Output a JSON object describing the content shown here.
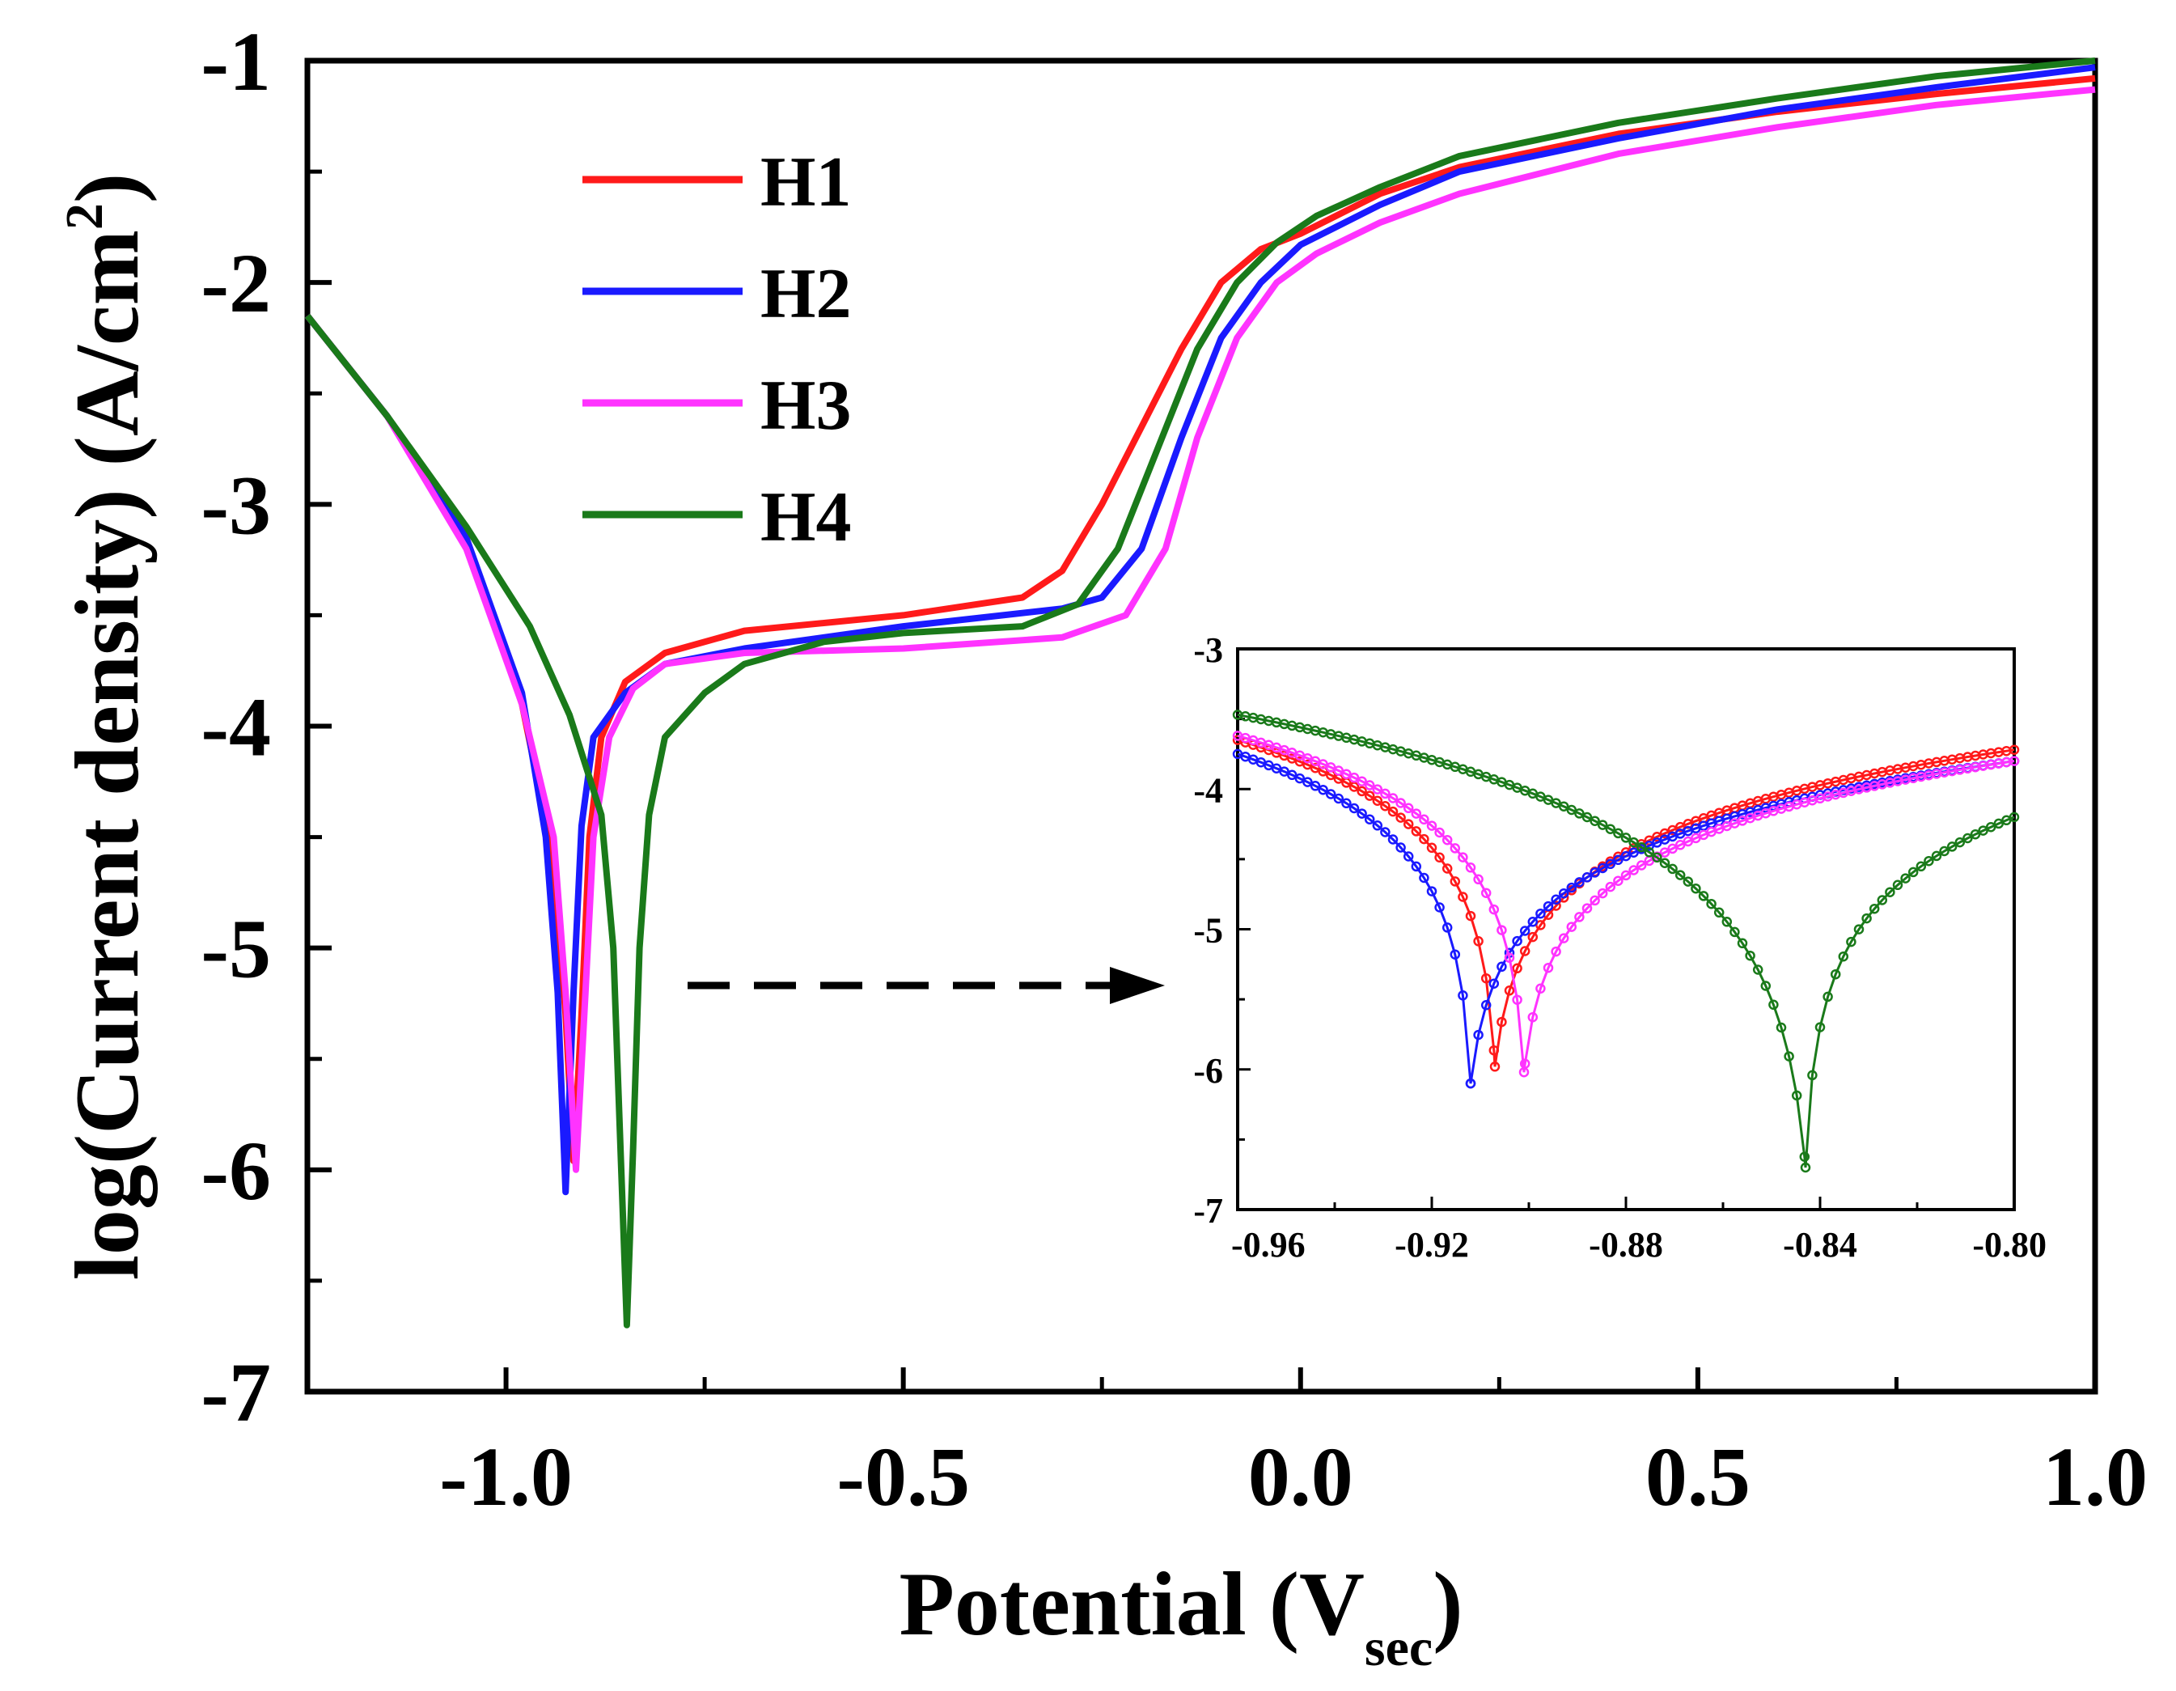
{
  "chart_data": [
    {
      "type": "line",
      "role": "main",
      "xlabel": "Potential (V",
      "xlabel_sub": "sec",
      "xlabel_close": ")",
      "ylabel": "log(Current density) (A/cm",
      "ylabel_sup": "2",
      "ylabel_close": ")",
      "xlim": [
        -1.25,
        1.0
      ],
      "ylim": [
        -7,
        -1
      ],
      "x_ticks": [
        -1.0,
        -0.5,
        0.0,
        0.5,
        1.0
      ],
      "x_tick_labels": [
        "-1.0",
        "-0.5",
        "0.0",
        "0.5",
        "1.0"
      ],
      "y_ticks": [
        -7,
        -6,
        -5,
        -4,
        -3,
        -2,
        -1
      ],
      "y_tick_labels": [
        "-7",
        "-6",
        "-5",
        "-4",
        "-3",
        "-2",
        "-1"
      ],
      "grid": false,
      "legend_position": "top-left",
      "series": [
        {
          "name": "H1",
          "color": "#ff1a1a",
          "points": [
            [
              -1.25,
              -2.15
            ],
            [
              -1.15,
              -2.6
            ],
            [
              -1.05,
              -3.15
            ],
            [
              -0.98,
              -3.9
            ],
            [
              -0.94,
              -4.6
            ],
            [
              -0.925,
              -5.3
            ],
            [
              -0.915,
              -5.96
            ],
            [
              -0.905,
              -5.3
            ],
            [
              -0.895,
              -4.5
            ],
            [
              -0.88,
              -4.05
            ],
            [
              -0.85,
              -3.8
            ],
            [
              -0.8,
              -3.67
            ],
            [
              -0.7,
              -3.57
            ],
            [
              -0.5,
              -3.5
            ],
            [
              -0.35,
              -3.42
            ],
            [
              -0.3,
              -3.3
            ],
            [
              -0.25,
              -3.0
            ],
            [
              -0.2,
              -2.65
            ],
            [
              -0.15,
              -2.3
            ],
            [
              -0.1,
              -2.0
            ],
            [
              -0.05,
              -1.85
            ],
            [
              0.0,
              -1.78
            ],
            [
              0.1,
              -1.6
            ],
            [
              0.2,
              -1.48
            ],
            [
              0.4,
              -1.33
            ],
            [
              0.6,
              -1.23
            ],
            [
              0.8,
              -1.15
            ],
            [
              1.0,
              -1.08
            ]
          ]
        },
        {
          "name": "H2",
          "color": "#1a1aff",
          "points": [
            [
              -1.25,
              -2.15
            ],
            [
              -1.15,
              -2.6
            ],
            [
              -1.05,
              -3.15
            ],
            [
              -0.98,
              -3.85
            ],
            [
              -0.95,
              -4.5
            ],
            [
              -0.935,
              -5.2
            ],
            [
              -0.925,
              -6.1
            ],
            [
              -0.915,
              -5.2
            ],
            [
              -0.905,
              -4.45
            ],
            [
              -0.89,
              -4.05
            ],
            [
              -0.85,
              -3.85
            ],
            [
              -0.8,
              -3.72
            ],
            [
              -0.7,
              -3.65
            ],
            [
              -0.5,
              -3.55
            ],
            [
              -0.3,
              -3.47
            ],
            [
              -0.25,
              -3.42
            ],
            [
              -0.2,
              -3.2
            ],
            [
              -0.15,
              -2.7
            ],
            [
              -0.1,
              -2.25
            ],
            [
              -0.05,
              -2.0
            ],
            [
              0.0,
              -1.83
            ],
            [
              0.1,
              -1.65
            ],
            [
              0.2,
              -1.5
            ],
            [
              0.4,
              -1.35
            ],
            [
              0.6,
              -1.22
            ],
            [
              0.8,
              -1.12
            ],
            [
              1.0,
              -1.03
            ]
          ]
        },
        {
          "name": "H3",
          "color": "#ff33ff",
          "points": [
            [
              -1.25,
              -2.15
            ],
            [
              -1.15,
              -2.6
            ],
            [
              -1.05,
              -3.2
            ],
            [
              -0.98,
              -3.9
            ],
            [
              -0.94,
              -4.5
            ],
            [
              -0.925,
              -5.2
            ],
            [
              -0.912,
              -6.0
            ],
            [
              -0.9,
              -5.2
            ],
            [
              -0.89,
              -4.5
            ],
            [
              -0.87,
              -4.05
            ],
            [
              -0.84,
              -3.83
            ],
            [
              -0.8,
              -3.72
            ],
            [
              -0.7,
              -3.67
            ],
            [
              -0.5,
              -3.65
            ],
            [
              -0.3,
              -3.6
            ],
            [
              -0.22,
              -3.5
            ],
            [
              -0.17,
              -3.2
            ],
            [
              -0.13,
              -2.7
            ],
            [
              -0.08,
              -2.25
            ],
            [
              -0.03,
              -2.0
            ],
            [
              0.02,
              -1.87
            ],
            [
              0.1,
              -1.73
            ],
            [
              0.2,
              -1.6
            ],
            [
              0.4,
              -1.42
            ],
            [
              0.6,
              -1.3
            ],
            [
              0.8,
              -1.2
            ],
            [
              1.0,
              -1.13
            ]
          ]
        },
        {
          "name": "H4",
          "color": "#1a7a1a",
          "points": [
            [
              -1.25,
              -2.15
            ],
            [
              -1.15,
              -2.6
            ],
            [
              -1.05,
              -3.1
            ],
            [
              -0.97,
              -3.55
            ],
            [
              -0.92,
              -3.95
            ],
            [
              -0.88,
              -4.4
            ],
            [
              -0.865,
              -5.0
            ],
            [
              -0.855,
              -6.0
            ],
            [
              -0.848,
              -6.7
            ],
            [
              -0.84,
              -5.9
            ],
            [
              -0.832,
              -5.0
            ],
            [
              -0.82,
              -4.4
            ],
            [
              -0.8,
              -4.05
            ],
            [
              -0.75,
              -3.85
            ],
            [
              -0.7,
              -3.72
            ],
            [
              -0.6,
              -3.62
            ],
            [
              -0.5,
              -3.58
            ],
            [
              -0.35,
              -3.55
            ],
            [
              -0.28,
              -3.45
            ],
            [
              -0.23,
              -3.2
            ],
            [
              -0.18,
              -2.75
            ],
            [
              -0.13,
              -2.3
            ],
            [
              -0.08,
              -2.0
            ],
            [
              -0.03,
              -1.82
            ],
            [
              0.02,
              -1.7
            ],
            [
              0.1,
              -1.57
            ],
            [
              0.2,
              -1.43
            ],
            [
              0.4,
              -1.28
            ],
            [
              0.6,
              -1.17
            ],
            [
              0.8,
              -1.07
            ],
            [
              1.0,
              -1.0
            ]
          ]
        }
      ],
      "annotation": "dashed arrow pointing to inset"
    },
    {
      "type": "scatter",
      "role": "inset",
      "xlim": [
        -0.96,
        -0.8
      ],
      "ylim": [
        -7,
        -3
      ],
      "x_ticks": [
        -0.96,
        -0.92,
        -0.88,
        -0.84,
        -0.8
      ],
      "x_tick_labels": [
        "-0.96",
        "-0.92",
        "-0.88",
        "-0.84",
        "-0.80"
      ],
      "y_ticks": [
        -7,
        -6,
        -5,
        -4,
        -3
      ],
      "y_tick_labels": [
        "-7",
        "-6",
        "-5",
        "-4",
        "-3"
      ],
      "series": [
        {
          "name": "H1",
          "color": "#ff1a1a",
          "ecorr": -0.907,
          "min_log_i": -5.98,
          "params": {
            "a": -3.65,
            "b": -0.907,
            "c": -3.72
          }
        },
        {
          "name": "H2",
          "color": "#1a1aff",
          "ecorr": -0.912,
          "min_log_i": -6.1,
          "params": {
            "a": -3.75,
            "b": -0.912,
            "c": -3.8
          }
        },
        {
          "name": "H3",
          "color": "#ff33ff",
          "ecorr": -0.901,
          "min_log_i": -6.02,
          "params": {
            "a": -3.62,
            "b": -0.901,
            "c": -3.8
          }
        },
        {
          "name": "H4",
          "color": "#1a7a1a",
          "ecorr": -0.843,
          "min_log_i": -6.7,
          "params": {
            "a": -3.47,
            "b": -0.843,
            "c": -4.2
          }
        }
      ]
    }
  ]
}
